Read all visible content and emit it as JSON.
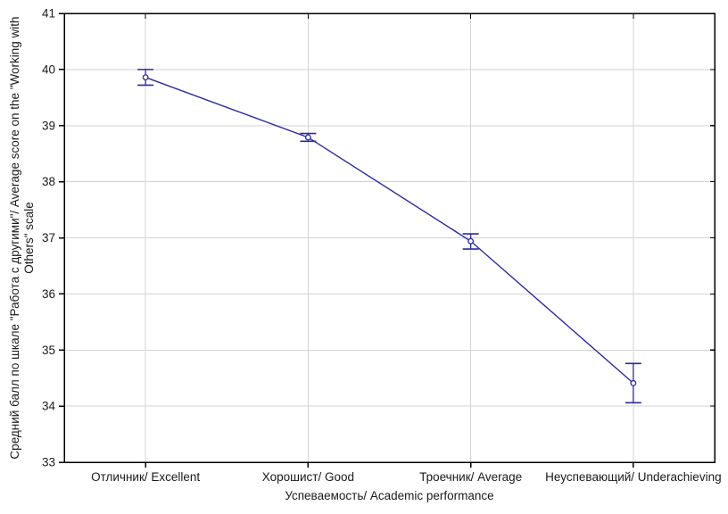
{
  "chart_data": {
    "type": "line",
    "title": "",
    "categories": [
      "Отличник/ Excellent",
      "Хорошист/ Good",
      "Троечник/ Average",
      "Неуспевающий/ Underachieving"
    ],
    "series": [
      {
        "name": "Средний балл / Average score",
        "values": [
          39.86,
          38.79,
          36.94,
          34.41
        ],
        "error_low": [
          39.72,
          38.72,
          36.8,
          34.06
        ],
        "error_high": [
          40.0,
          38.86,
          37.07,
          34.76
        ]
      }
    ],
    "xlabel": "Успеваемость/ Academic performance",
    "ylabel": "Средний балл по шкале \"Работа с другими\"/ Average score on the \"Working with Others\" scale",
    "ylabel_lines": [
      "Средний балл по шкале \"Работа с другими\"/ Average score on the \"Working with",
      "Others\" scale"
    ],
    "ylim": [
      33,
      41
    ],
    "yticks": [
      33,
      34,
      35,
      36,
      37,
      38,
      39,
      40,
      41
    ],
    "grid": true,
    "legend_position": "none",
    "marker": "open-circle",
    "error_bars": true,
    "colors": {
      "line": "#2a2aa0",
      "marker": "#2a2aa0",
      "grid": "#d3d3d3",
      "axis": "#000000",
      "text": "#1a1a1a",
      "background": "#ffffff"
    }
  }
}
